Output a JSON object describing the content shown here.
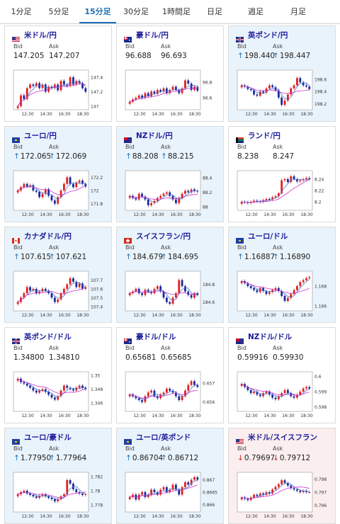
{
  "tabs": [
    {
      "label": "1分足",
      "active": false
    },
    {
      "label": "5分足",
      "active": false
    },
    {
      "label": "15分足",
      "active": true
    },
    {
      "label": "30分足",
      "active": false
    },
    {
      "label": "1時間足",
      "active": false
    },
    {
      "label": "日足",
      "active": false
    },
    {
      "label": "週足",
      "active": false
    },
    {
      "label": "月足",
      "active": false
    }
  ],
  "labels": {
    "bid": "Bid",
    "ask": "Ask"
  },
  "colors": {
    "up": "#e02020",
    "down": "#1a2a9a",
    "ma_short": "#4a7bd0",
    "ma_long": "#cc33cc",
    "arrow_up": "#1f6fb5",
    "arrow_down": "#d02020"
  },
  "cards": [
    {
      "pair": "米ドル/円",
      "flag": "us",
      "bg": "plain",
      "bid": "147.205",
      "ask": "147.207",
      "arrow": "",
      "chart_data": {
        "type": "candlestick",
        "x_ticks": [
          "12:30",
          "14:30",
          "16:30",
          "18:30"
        ],
        "y_ticks": [
          "147.4",
          "147.2",
          "147"
        ],
        "ylim": [
          146.95,
          147.5
        ],
        "closes": [
          147.0,
          147.15,
          147.1,
          147.25,
          147.3,
          147.28,
          147.32,
          147.25,
          147.3,
          147.2,
          147.27,
          147.25,
          147.3,
          147.22,
          147.35,
          147.3,
          147.28,
          147.4,
          147.3,
          147.35,
          147.32,
          147.25,
          147.2
        ]
      }
    },
    {
      "pair": "豪ドル/円",
      "flag": "au",
      "bg": "plain",
      "bid": "96.688",
      "ask": "96.693",
      "arrow": "",
      "chart_data": {
        "type": "candlestick",
        "x_ticks": [
          "12:30",
          "14:30",
          "16:30",
          "18:30"
        ],
        "y_ticks": [
          "96.8",
          "96.6"
        ],
        "ylim": [
          96.45,
          96.95
        ],
        "closes": [
          96.55,
          96.58,
          96.6,
          96.63,
          96.6,
          96.66,
          96.62,
          96.68,
          96.65,
          96.7,
          96.68,
          96.72,
          96.66,
          96.7,
          96.74,
          96.7,
          96.66,
          96.72,
          96.82,
          96.78,
          96.7,
          96.74,
          96.69
        ]
      }
    },
    {
      "pair": "英ポンド/円",
      "flag": "uk",
      "bg": "hl-blue",
      "bid": "198.440",
      "ask": "198.447",
      "arrow": "up",
      "chart_data": {
        "type": "candlestick",
        "x_ticks": [
          "12:30",
          "14:30",
          "16:30",
          "18:30"
        ],
        "y_ticks": [
          "198.6",
          "198.4",
          "198.2"
        ],
        "ylim": [
          198.1,
          198.75
        ],
        "closes": [
          198.5,
          198.48,
          198.44,
          198.42,
          198.35,
          198.33,
          198.4,
          198.38,
          198.45,
          198.5,
          198.47,
          198.42,
          198.3,
          198.18,
          198.25,
          198.35,
          198.45,
          198.5,
          198.62,
          198.55,
          198.5,
          198.48,
          198.44
        ]
      }
    },
    {
      "pair": "ユーロ/円",
      "flag": "eu",
      "bg": "hl-blue",
      "bid": "172.065",
      "ask": "172.069",
      "arrow": "up",
      "chart_data": {
        "type": "candlestick",
        "x_ticks": [
          "12:30",
          "14:30",
          "16:30",
          "18:30"
        ],
        "y_ticks": [
          "172.2",
          "172",
          "171.8"
        ],
        "ylim": [
          171.7,
          172.3
        ],
        "closes": [
          172.0,
          172.05,
          172.1,
          172.06,
          172.08,
          172.0,
          171.98,
          171.9,
          171.95,
          172.02,
          171.92,
          171.85,
          171.8,
          171.9,
          172.0,
          172.1,
          172.2,
          172.1,
          172.05,
          172.12,
          172.15,
          172.1,
          172.06
        ]
      }
    },
    {
      "pair": "NZドル/円",
      "flag": "nz",
      "bg": "hl-blue",
      "bid": "88.208",
      "ask": "88.215",
      "arrow": "up",
      "chart_data": {
        "type": "candlestick",
        "x_ticks": [
          "12:30",
          "14:30",
          "16:30",
          "18:30"
        ],
        "y_ticks": [
          "88.4",
          "88.2",
          "88"
        ],
        "ylim": [
          87.95,
          88.5
        ],
        "closes": [
          88.15,
          88.12,
          88.1,
          88.18,
          88.14,
          88.1,
          88.02,
          88.05,
          88.08,
          88.12,
          88.15,
          88.18,
          88.2,
          88.15,
          88.1,
          88.05,
          88.12,
          88.18,
          88.22,
          88.2,
          88.24,
          88.22,
          88.21
        ]
      }
    },
    {
      "pair": "ランド/円",
      "flag": "za",
      "bg": "plain",
      "bid": "8.238",
      "ask": "8.247",
      "arrow": "",
      "chart_data": {
        "type": "candlestick",
        "x_ticks": [
          "12:30",
          "14:30",
          "16:30",
          "18:30"
        ],
        "y_ticks": [
          "8.24",
          "8.22",
          "8.2"
        ],
        "ylim": [
          8.185,
          8.255
        ],
        "closes": [
          8.2,
          8.199,
          8.198,
          8.2,
          8.202,
          8.201,
          8.2,
          8.203,
          8.205,
          8.204,
          8.208,
          8.21,
          8.215,
          8.238,
          8.24,
          8.235,
          8.245,
          8.24,
          8.236,
          8.238,
          8.24,
          8.242,
          8.24
        ]
      }
    },
    {
      "pair": "カナダドル/円",
      "flag": "ca",
      "bg": "hl-blue",
      "bid": "107.615",
      "ask": "107.621",
      "arrow": "up",
      "chart_data": {
        "type": "candlestick",
        "x_ticks": [
          "12:30",
          "14:30",
          "16:30",
          "18:30"
        ],
        "y_ticks": [
          "107.7",
          "107.6",
          "107.5",
          "107.4"
        ],
        "ylim": [
          107.35,
          107.8
        ],
        "closes": [
          107.45,
          107.5,
          107.55,
          107.62,
          107.58,
          107.6,
          107.55,
          107.57,
          107.6,
          107.58,
          107.55,
          107.5,
          107.45,
          107.48,
          107.55,
          107.6,
          107.65,
          107.72,
          107.68,
          107.62,
          107.66,
          107.6,
          107.62
        ]
      }
    },
    {
      "pair": "スイスフラン/円",
      "flag": "ch",
      "bg": "hl-blue",
      "bid": "184.679",
      "ask": "184.695",
      "arrow": "up",
      "chart_data": {
        "type": "candlestick",
        "x_ticks": [
          "12:30",
          "14:30",
          "16:30",
          "18:30"
        ],
        "y_ticks": [
          "184.8",
          "184.6"
        ],
        "ylim": [
          184.5,
          184.95
        ],
        "closes": [
          184.7,
          184.72,
          184.75,
          184.7,
          184.68,
          184.74,
          184.72,
          184.7,
          184.75,
          184.78,
          184.72,
          184.65,
          184.6,
          184.58,
          184.65,
          184.7,
          184.85,
          184.78,
          184.72,
          184.68,
          184.65,
          184.7,
          184.68
        ]
      }
    },
    {
      "pair": "ユーロ/ドル",
      "flag": "eu-us",
      "bg": "hl-blue",
      "bid": "1.16887",
      "ask": "1.16890",
      "arrow": "up",
      "chart_data": {
        "type": "candlestick",
        "x_ticks": [
          "12:30",
          "14:30",
          "16:30",
          "18:30"
        ],
        "y_ticks": [
          "1.168",
          "1.166"
        ],
        "ylim": [
          1.1655,
          1.1695
        ],
        "closes": [
          1.1685,
          1.1683,
          1.168,
          1.1678,
          1.1676,
          1.1674,
          1.1678,
          1.1675,
          1.1672,
          1.1674,
          1.1676,
          1.1678,
          1.1675,
          1.167,
          1.1665,
          1.1668,
          1.1672,
          1.1676,
          1.168,
          1.1684,
          1.1686,
          1.1688,
          1.1689
        ]
      }
    },
    {
      "pair": "英ポンド/ドル",
      "flag": "uk-us",
      "bg": "plain",
      "bid": "1.34800",
      "ask": "1.34810",
      "arrow": "",
      "chart_data": {
        "type": "candlestick",
        "x_ticks": [
          "12:30",
          "14:30",
          "16:30",
          "18:30"
        ],
        "y_ticks": [
          "1.35",
          "1.348",
          "1.346"
        ],
        "ylim": [
          1.3448,
          1.3505
        ],
        "closes": [
          1.3495,
          1.349,
          1.3488,
          1.3485,
          1.3482,
          1.3478,
          1.3475,
          1.3478,
          1.348,
          1.3476,
          1.3472,
          1.3468,
          1.3465,
          1.347,
          1.3478,
          1.3485,
          1.3482,
          1.348,
          1.3478,
          1.3482,
          1.3485,
          1.3482,
          1.348
        ]
      }
    },
    {
      "pair": "豪ドル/ドル",
      "flag": "au-us",
      "bg": "plain",
      "bid": "0.65681",
      "ask": "0.65685",
      "arrow": "",
      "chart_data": {
        "type": "candlestick",
        "x_ticks": [
          "12:30",
          "14:30",
          "16:30",
          "18:30"
        ],
        "y_ticks": [
          "0.657",
          "0.656"
        ],
        "ylim": [
          0.6555,
          0.6576
        ],
        "closes": [
          0.6564,
          0.6563,
          0.6562,
          0.6561,
          0.656,
          0.6563,
          0.6565,
          0.6566,
          0.6563,
          0.6562,
          0.6564,
          0.6565,
          0.6567,
          0.6566,
          0.6565,
          0.6563,
          0.6561,
          0.6563,
          0.6566,
          0.6569,
          0.6571,
          0.6569,
          0.6568
        ]
      }
    },
    {
      "pair": "NZドル/ドル",
      "flag": "nz-us",
      "bg": "plain",
      "bid": "0.59916",
      "ask": "0.59930",
      "arrow": "",
      "chart_data": {
        "type": "candlestick",
        "x_ticks": [
          "12:30",
          "14:30",
          "16:30",
          "18:30"
        ],
        "y_ticks": [
          "0.6",
          "0.599",
          "0.598"
        ],
        "ylim": [
          0.5977,
          0.6003
        ],
        "closes": [
          0.5995,
          0.5993,
          0.5991,
          0.5989,
          0.599,
          0.5988,
          0.5987,
          0.5989,
          0.599,
          0.5988,
          0.5986,
          0.5985,
          0.5987,
          0.5989,
          0.5991,
          0.5989,
          0.5987,
          0.5986,
          0.5988,
          0.599,
          0.5992,
          0.5993,
          0.5992
        ]
      }
    },
    {
      "pair": "ユーロ/豪ドル",
      "flag": "eu-au",
      "bg": "hl-blue",
      "bid": "1.77950",
      "ask": "1.77964",
      "arrow": "up",
      "chart_data": {
        "type": "candlestick",
        "x_ticks": [
          "12:30",
          "14:30",
          "16:30",
          "18:30"
        ],
        "y_ticks": [
          "1.782",
          "1.78",
          "1.778"
        ],
        "ylim": [
          1.777,
          1.7826
        ],
        "closes": [
          1.7795,
          1.7798,
          1.78,
          1.7796,
          1.7794,
          1.7792,
          1.779,
          1.7793,
          1.7795,
          1.7792,
          1.779,
          1.7788,
          1.7785,
          1.7788,
          1.7792,
          1.7795,
          1.7815,
          1.781,
          1.7802,
          1.7798,
          1.7796,
          1.7794,
          1.7795
        ]
      }
    },
    {
      "pair": "ユーロ/英ポンド",
      "flag": "eu-uk",
      "bg": "hl-blue",
      "bid": "0.86704",
      "ask": "0.86712",
      "arrow": "up",
      "chart_data": {
        "type": "candlestick",
        "x_ticks": [
          "12:30",
          "14:30",
          "16:30",
          "18:30"
        ],
        "y_ticks": [
          "0.867",
          "0.8665",
          "0.866"
        ],
        "ylim": [
          0.8657,
          0.8673
        ],
        "closes": [
          0.8663,
          0.8664,
          0.8662,
          0.8664,
          0.8665,
          0.8663,
          0.8664,
          0.8666,
          0.8665,
          0.8664,
          0.8666,
          0.8667,
          0.8665,
          0.8666,
          0.8668,
          0.8666,
          0.8664,
          0.8667,
          0.8669,
          0.8668,
          0.867,
          0.8671,
          0.867
        ]
      }
    },
    {
      "pair": "米ドル/スイスフラン",
      "flag": "us-ch",
      "bg": "hl-red",
      "bid": "0.79697",
      "ask": "0.79712",
      "arrow": "down",
      "chart_data": {
        "type": "candlestick",
        "x_ticks": [
          "12:30",
          "14:30",
          "16:30",
          "18:30"
        ],
        "y_ticks": [
          "0.798",
          "0.797",
          "0.796"
        ],
        "ylim": [
          0.7955,
          0.7985
        ],
        "closes": [
          0.7966,
          0.7965,
          0.7964,
          0.7966,
          0.7968,
          0.7967,
          0.7969,
          0.7968,
          0.797,
          0.7969,
          0.7972,
          0.7974,
          0.7976,
          0.7979,
          0.7977,
          0.7975,
          0.7973,
          0.7972,
          0.7971,
          0.797,
          0.7971,
          0.797,
          0.797
        ]
      }
    }
  ]
}
